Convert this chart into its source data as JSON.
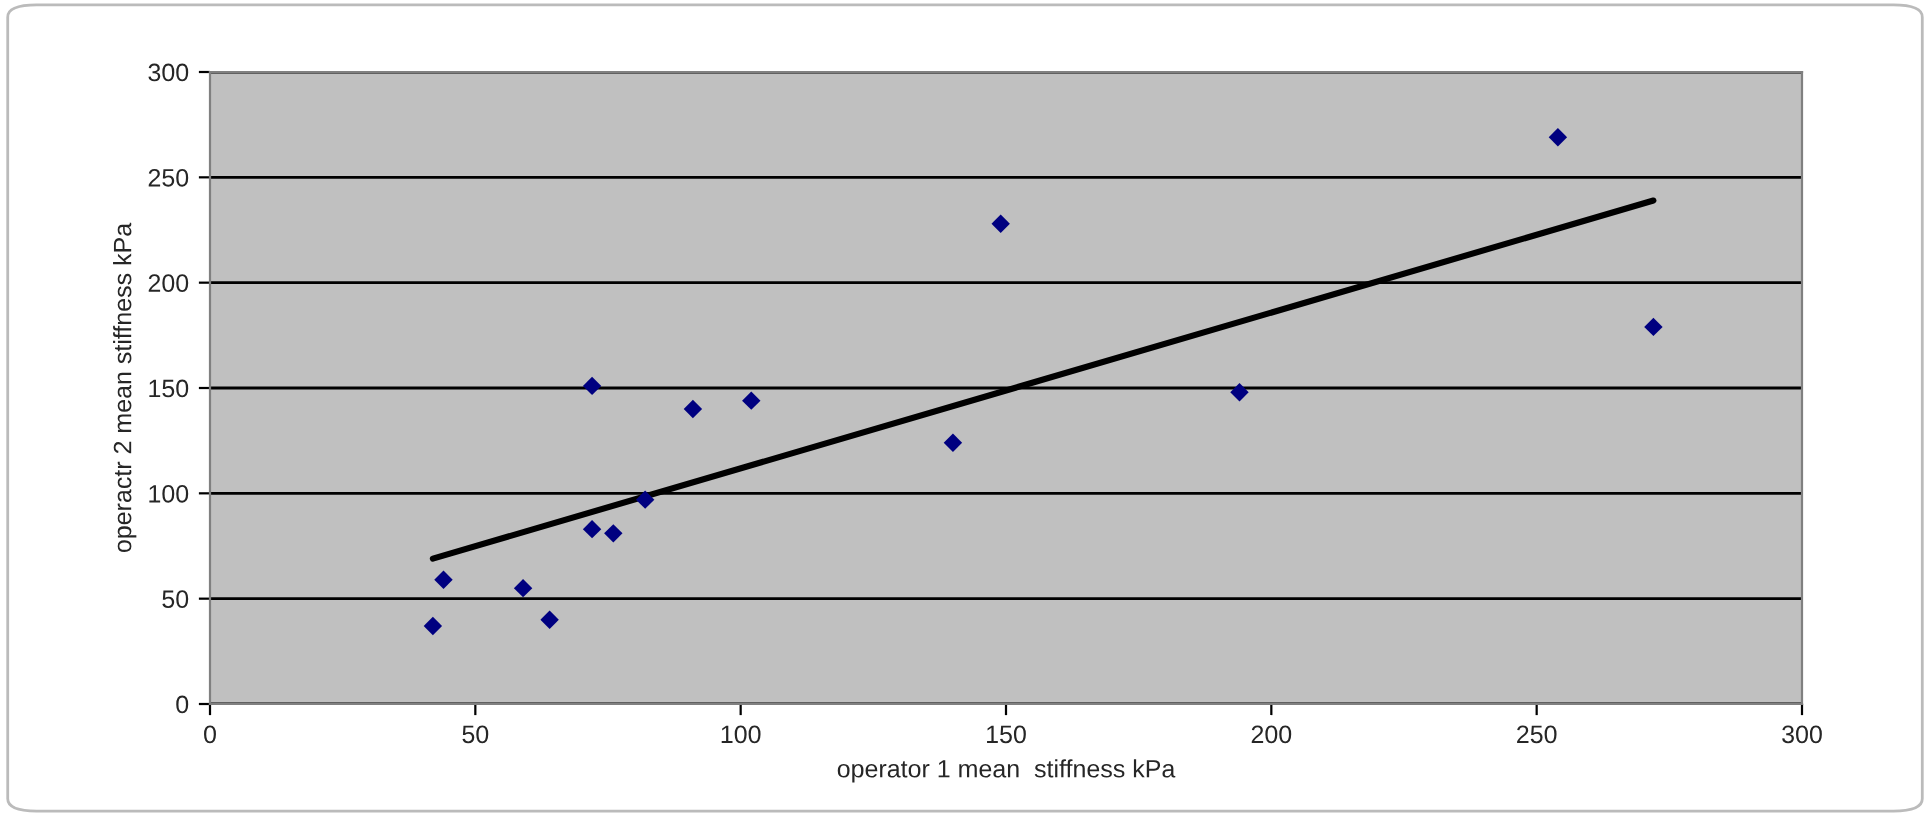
{
  "chart_data": {
    "type": "scatter",
    "xlabel": "operator 1 mean  stiffness kPa",
    "ylabel": "operactr 2 mean stiffness kPa",
    "xlim": [
      0,
      300
    ],
    "xticks": [
      0,
      50,
      100,
      150,
      200,
      250,
      300
    ],
    "ylim": [
      0,
      300
    ],
    "yticks": [
      0,
      50,
      100,
      150,
      200,
      250,
      300
    ],
    "grid": "y",
    "marker": "diamond",
    "series": [
      {
        "color": "#000080",
        "x": [
          42,
          44,
          59,
          64,
          72,
          72,
          76,
          82,
          91,
          102,
          140,
          149,
          194,
          254,
          272
        ],
        "values": [
          37,
          59,
          55,
          40,
          151,
          83,
          81,
          97,
          140,
          144,
          124,
          228,
          148,
          269,
          179
        ]
      },
      {
        "type": "line",
        "color": "#000000",
        "marker": "none",
        "x": [
          42,
          272
        ],
        "values": [
          69,
          239
        ]
      }
    ]
  }
}
